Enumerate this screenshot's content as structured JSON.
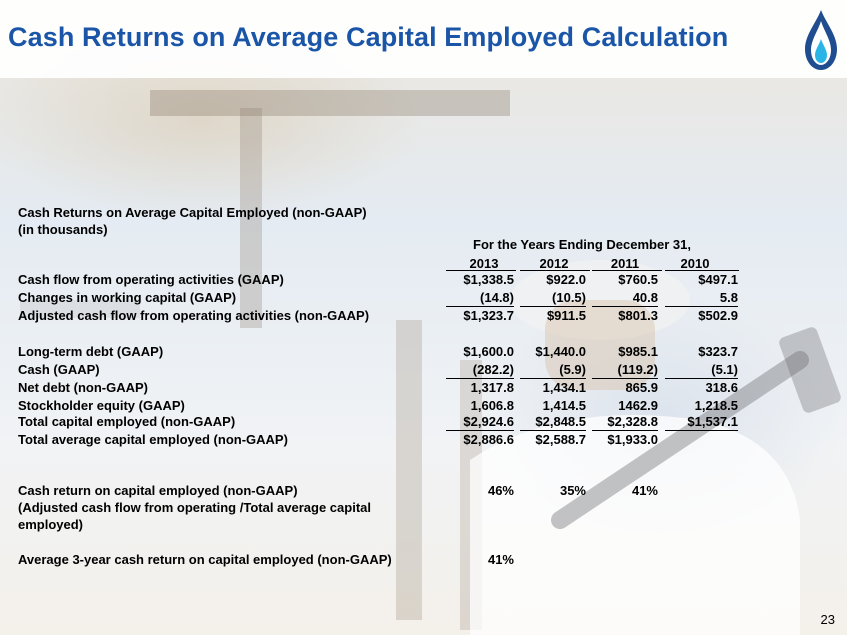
{
  "slide": {
    "title": "Cash Returns on Average Capital Employed Calculation",
    "page_number": "23"
  },
  "table": {
    "heading_line1": "Cash Returns on Average Capital Employed (non-GAAP)",
    "heading_line2": "(in thousands)",
    "period_header": "For the Years Ending December 31,",
    "years": [
      "2013",
      "2012",
      "2011",
      "2010"
    ],
    "rows": [
      {
        "label": "Cash flow from operating activities (GAAP)",
        "values": [
          "$1,338.5",
          "$922.0",
          "$760.5",
          "$497.1"
        ]
      },
      {
        "label": "Changes in working capital (GAAP)",
        "values": [
          "(14.8)",
          "(10.5)",
          "40.8",
          "5.8"
        ]
      },
      {
        "label": "Adjusted cash flow from operating activities (non-GAAP)",
        "values": [
          "$1,323.7",
          "$911.5",
          "$801.3",
          "$502.9"
        ]
      },
      {
        "label": "Long-term debt (GAAP)",
        "values": [
          "$1,600.0",
          "$1,440.0",
          "$985.1",
          "$323.7"
        ]
      },
      {
        "label": "Cash (GAAP)",
        "values": [
          "(282.2)",
          "(5.9)",
          "(119.2)",
          "(5.1)"
        ]
      },
      {
        "label": "Net debt (non-GAAP)",
        "values": [
          "1,317.8",
          "1,434.1",
          "865.9",
          "318.6"
        ]
      },
      {
        "label": "Stockholder equity (GAAP)",
        "values": [
          "1,606.8",
          "1,414.5",
          "1462.9",
          "1,218.5"
        ]
      },
      {
        "label": "Total  capital employed (non-GAAP)",
        "values": [
          "$2,924.6",
          "$2,848.5",
          "$2,328.8",
          "$1,537.1"
        ]
      },
      {
        "label": "Total average capital employed (non-GAAP)",
        "values": [
          "$2,886.6",
          "$2,588.7",
          "$1,933.0",
          ""
        ]
      },
      {
        "label": "Cash return on capital employed (non-GAAP)",
        "values": [
          "46%",
          "35%",
          "41%",
          ""
        ]
      },
      {
        "label": "(Adjusted cash flow from operating /Total average capital",
        "values": [
          "",
          "",
          "",
          ""
        ]
      },
      {
        "label": "employed)",
        "values": [
          "",
          "",
          "",
          ""
        ]
      },
      {
        "label": "Average 3-year cash return on capital employed (non-GAAP)",
        "values": [
          "41%",
          "",
          "",
          ""
        ]
      }
    ]
  },
  "colors": {
    "title": "#1a55a8",
    "text": "#000000",
    "logo_blue": "#1f4d8f",
    "logo_cyan": "#2bb5e6"
  },
  "icons": {
    "logo": "flame-drop-logo-icon"
  }
}
